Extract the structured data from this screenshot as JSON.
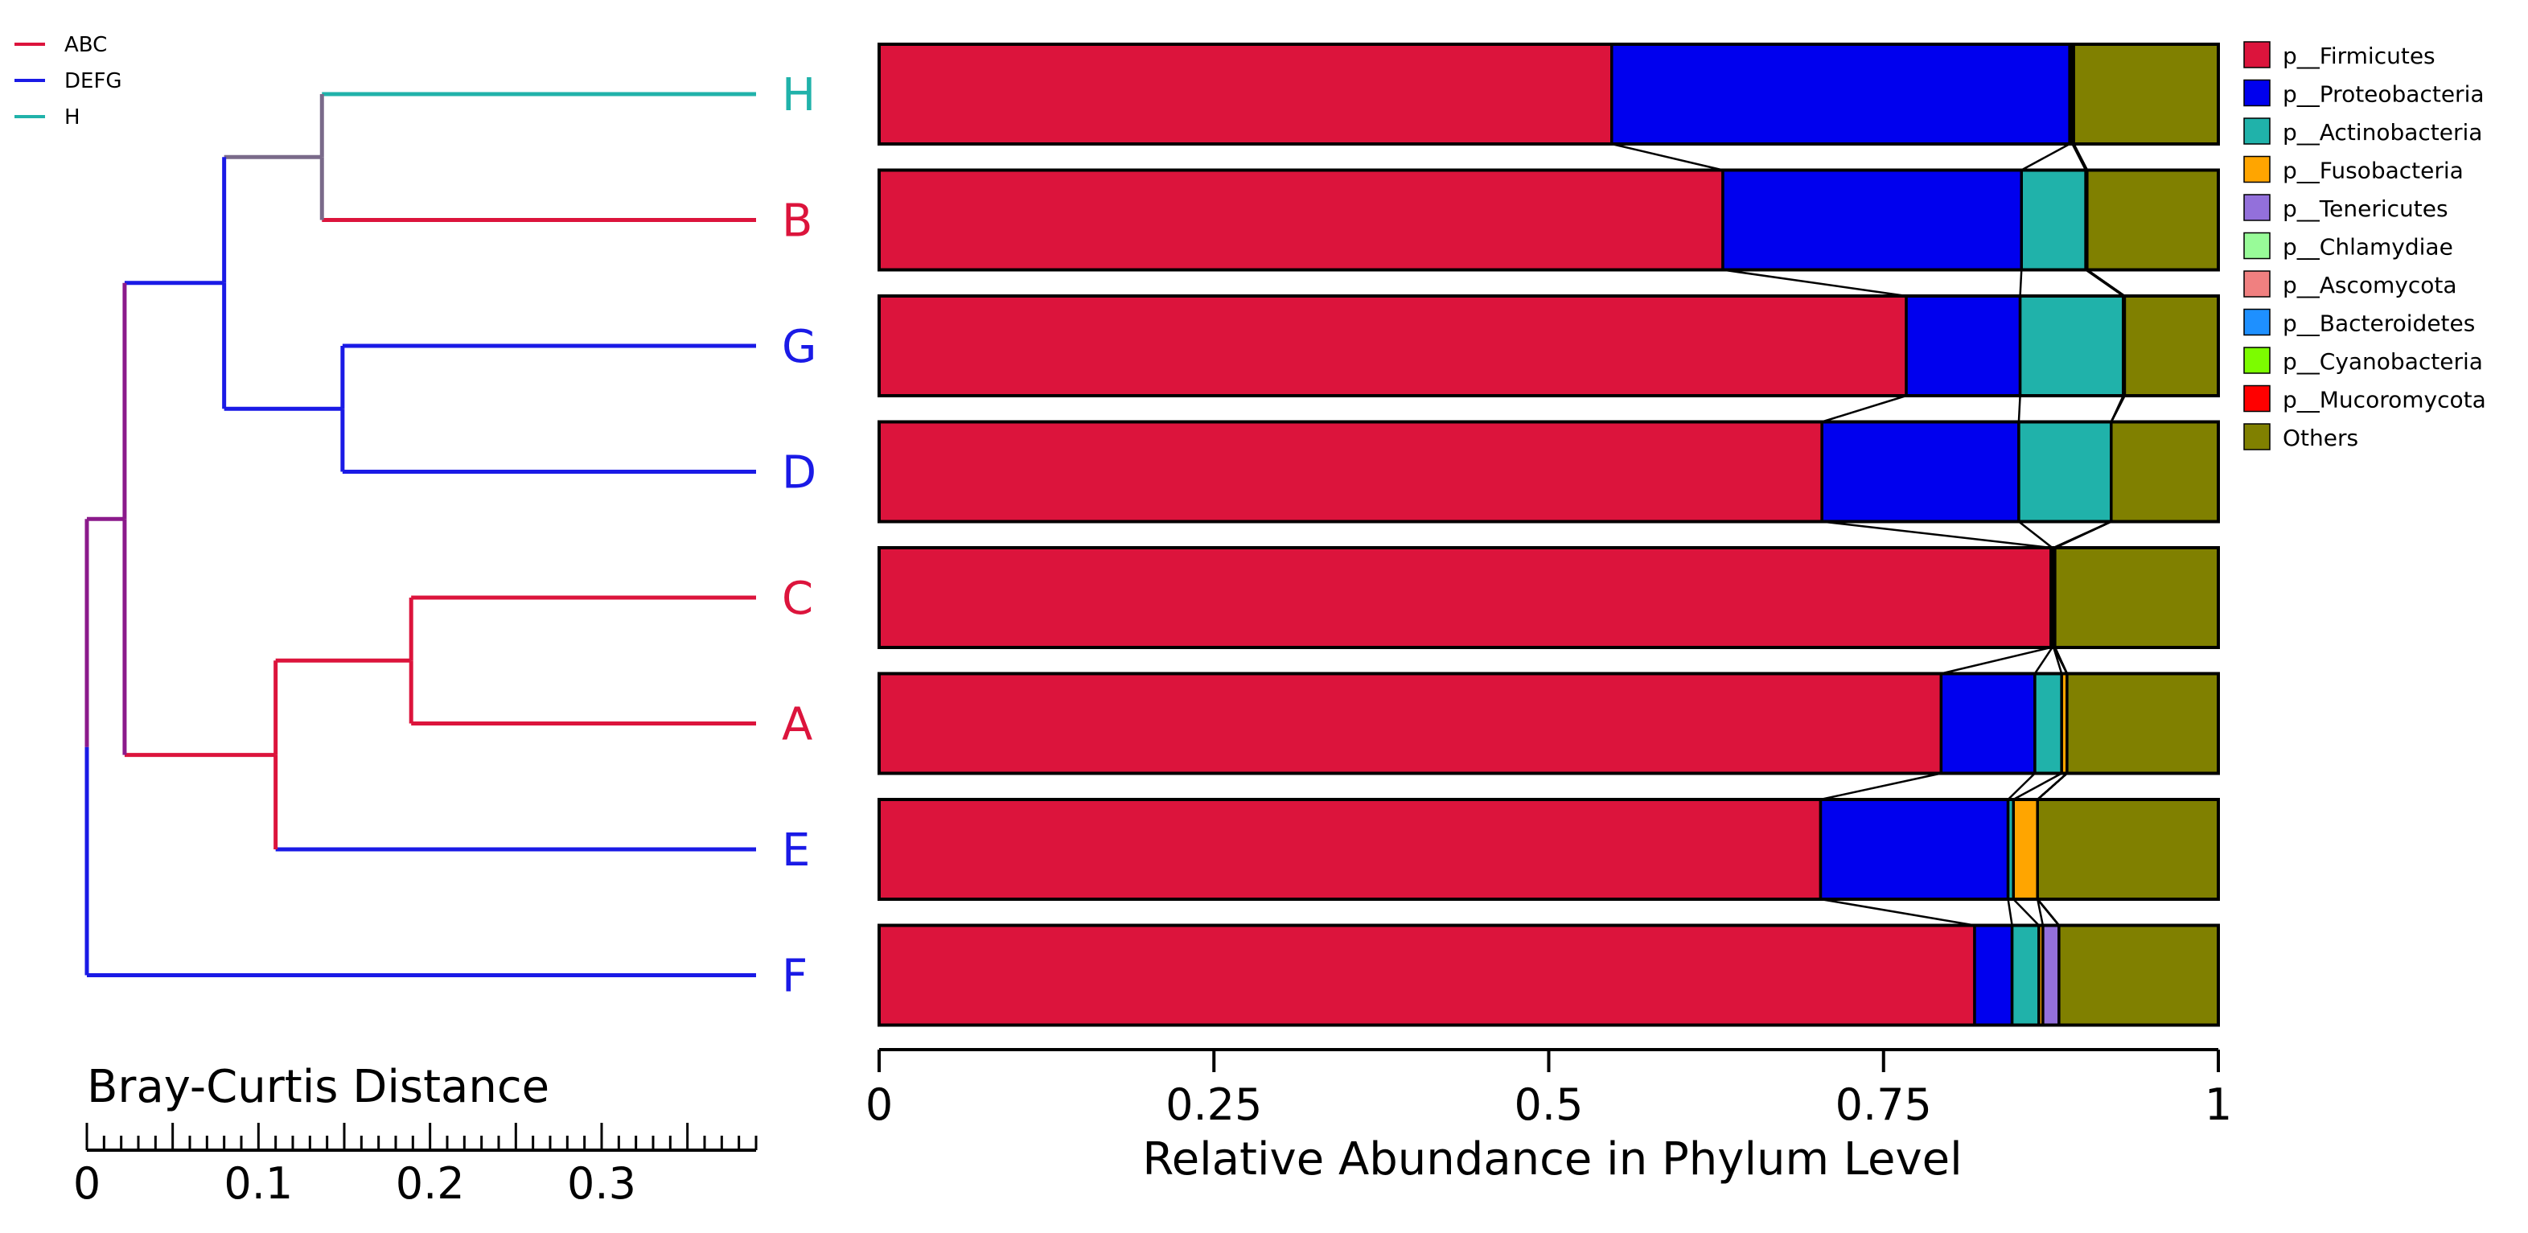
{
  "group_legend": [
    {
      "name": "ABC",
      "color": "#dc143c"
    },
    {
      "name": "DEFG",
      "color": "#1a1ae6"
    },
    {
      "name": "H",
      "color": "#20b2aa"
    }
  ],
  "dendrogram": {
    "xlabel": "Bray-Curtis Distance",
    "ticks": [
      0,
      0.1,
      0.2,
      0.3
    ],
    "tick_labels": [
      "0",
      "0.1",
      "0.2",
      "0.3"
    ],
    "xlim": [
      0,
      0.39
    ],
    "leaves": [
      {
        "label": "H",
        "group": "H"
      },
      {
        "label": "B",
        "group": "ABC"
      },
      {
        "label": "G",
        "group": "DEFG"
      },
      {
        "label": "D",
        "group": "DEFG"
      },
      {
        "label": "C",
        "group": "ABC"
      },
      {
        "label": "A",
        "group": "ABC"
      },
      {
        "label": "E",
        "group": "DEFG"
      },
      {
        "label": "F",
        "group": "DEFG"
      }
    ],
    "merges": [
      {
        "height": 0.137,
        "children": [
          "H",
          "B"
        ],
        "color": "#7a6a8a"
      },
      {
        "height": 0.149,
        "children": [
          "G",
          "D"
        ],
        "color": "#1a1ae6"
      },
      {
        "height": 0.08,
        "children": [
          "HB",
          "GD"
        ],
        "color": "#1a1ae6"
      },
      {
        "height": 0.189,
        "children": [
          "C",
          "A"
        ],
        "color": "#dc143c"
      },
      {
        "height": 0.11,
        "children": [
          "CA",
          "E"
        ],
        "color": "#dc143c"
      },
      {
        "height": 0.022,
        "children": [
          "HBGD",
          "CAE"
        ],
        "color": "#8b1a8b"
      },
      {
        "height": 0.0,
        "children": [
          "HBGDCAE",
          "F"
        ],
        "color": "#8b1a8b"
      }
    ]
  },
  "chart_data": {
    "type": "bar",
    "orientation": "horizontal",
    "stacked": true,
    "xlabel": "Relative Abundance in Phylum Level",
    "xlim": [
      0,
      1
    ],
    "x_ticks": [
      0,
      0.25,
      0.5,
      0.75,
      1
    ],
    "x_tick_labels": [
      "0",
      "0.25",
      "0.5",
      "0.75",
      "1"
    ],
    "legend_position": "right",
    "categories": [
      "H",
      "B",
      "G",
      "D",
      "C",
      "A",
      "E",
      "F"
    ],
    "series": [
      {
        "name": "p__Firmicutes",
        "color": "#dc143c",
        "values": [
          0.547,
          0.63,
          0.767,
          0.704,
          0.875,
          0.793,
          0.703,
          0.818
        ]
      },
      {
        "name": "p__Proteobacteria",
        "color": "#0000ee",
        "values": [
          0.342,
          0.223,
          0.085,
          0.147,
          0.001,
          0.07,
          0.14,
          0.028
        ]
      },
      {
        "name": "p__Actinobacteria",
        "color": "#20b2aa",
        "values": [
          0.002,
          0.048,
          0.077,
          0.069,
          0.001,
          0.02,
          0.004,
          0.02
        ]
      },
      {
        "name": "p__Fusobacteria",
        "color": "#ffa500",
        "values": [
          0.001,
          0.001,
          0.001,
          0.0,
          0.0,
          0.004,
          0.018,
          0.003
        ]
      },
      {
        "name": "p__Tenericutes",
        "color": "#9370db",
        "values": [
          0.0,
          0.0,
          0.0,
          0.0,
          0.001,
          0.0,
          0.0,
          0.012
        ]
      },
      {
        "name": "p__Chlamydiae",
        "color": "#98fb98",
        "values": [
          0.0,
          0.0,
          0.0,
          0.0,
          0.0,
          0.0,
          0.0,
          0.0
        ]
      },
      {
        "name": "p__Ascomycota",
        "color": "#f08080",
        "values": [
          0.0,
          0.0,
          0.0,
          0.0,
          0.0,
          0.0,
          0.0,
          0.0
        ]
      },
      {
        "name": "p__Bacteroidetes",
        "color": "#1e90ff",
        "values": [
          0.0,
          0.0,
          0.0,
          0.0,
          0.0,
          0.0,
          0.0,
          0.0
        ]
      },
      {
        "name": "p__Cyanobacteria",
        "color": "#7cfc00",
        "values": [
          0.0,
          0.0,
          0.0,
          0.0,
          0.0,
          0.0,
          0.0,
          0.0
        ]
      },
      {
        "name": "p__Mucoromycota",
        "color": "#ff0000",
        "values": [
          0.0,
          0.0,
          0.0,
          0.0,
          0.0,
          0.0,
          0.0,
          0.0
        ]
      },
      {
        "name": "Others",
        "color": "#808000",
        "values": [
          0.108,
          0.098,
          0.07,
          0.08,
          0.122,
          0.113,
          0.135,
          0.119
        ]
      }
    ]
  }
}
